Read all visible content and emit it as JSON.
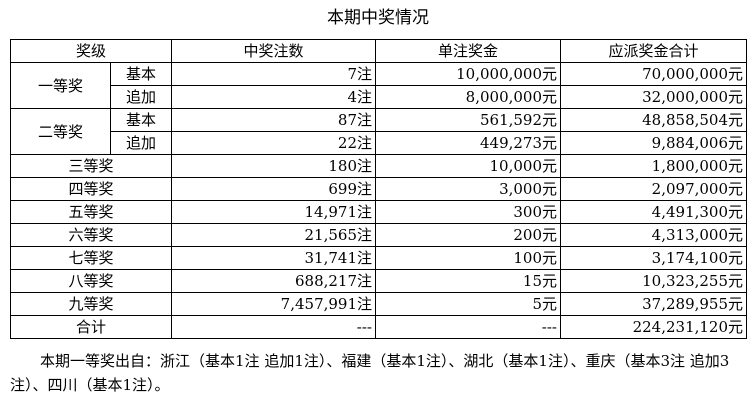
{
  "title": "本期中奖情况",
  "headers": {
    "level": "奖级",
    "count": "中奖注数",
    "unit": "单注奖金",
    "total": "应派奖金合计"
  },
  "first": {
    "name": "一等奖",
    "basic": {
      "sub": "基本",
      "count": "7注",
      "unit": "10,000,000元",
      "total": "70,000,000元"
    },
    "extra": {
      "sub": "追加",
      "count": "4注",
      "unit": "8,000,000元",
      "total": "32,000,000元"
    }
  },
  "second": {
    "name": "二等奖",
    "basic": {
      "sub": "基本",
      "count": "87注",
      "unit": "561,592元",
      "total": "48,858,504元"
    },
    "extra": {
      "sub": "追加",
      "count": "22注",
      "unit": "449,273元",
      "total": "9,884,006元"
    }
  },
  "rows": [
    {
      "name": "三等奖",
      "count": "180注",
      "unit": "10,000元",
      "total": "1,800,000元"
    },
    {
      "name": "四等奖",
      "count": "699注",
      "unit": "3,000元",
      "total": "2,097,000元"
    },
    {
      "name": "五等奖",
      "count": "14,971注",
      "unit": "300元",
      "total": "4,491,300元"
    },
    {
      "name": "六等奖",
      "count": "21,565注",
      "unit": "200元",
      "total": "4,313,000元"
    },
    {
      "name": "七等奖",
      "count": "31,741注",
      "unit": "100元",
      "total": "3,174,100元"
    },
    {
      "name": "八等奖",
      "count": "688,217注",
      "unit": "15元",
      "total": "10,323,255元"
    },
    {
      "name": "九等奖",
      "count": "7,457,991注",
      "unit": "5元",
      "total": "37,289,955元"
    }
  ],
  "summary": {
    "name": "合计",
    "count": "---",
    "unit": "---",
    "total": "224,231,120元"
  },
  "note": "本期一等奖出自：浙江（基本1注 追加1注）、福建（基本1注）、湖北（基本1注）、重庆（基本3注 追加3注）、四川（基本1注）。"
}
